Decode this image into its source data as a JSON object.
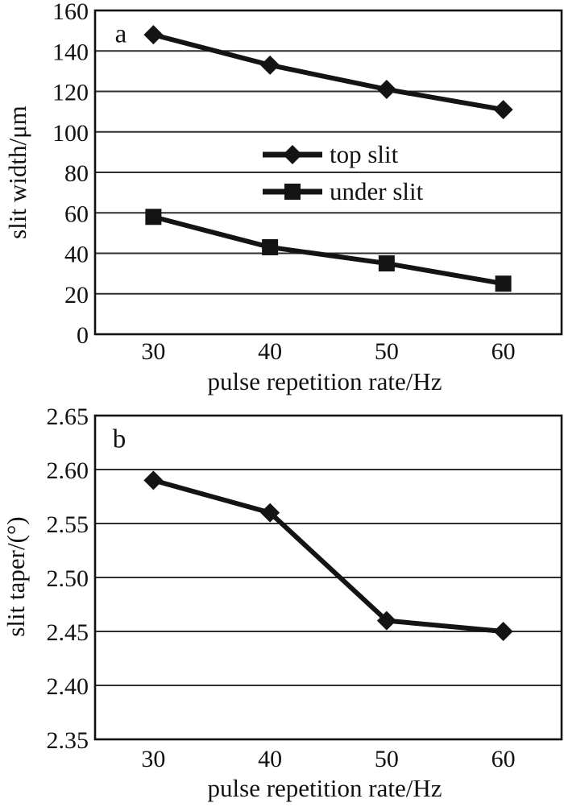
{
  "chart_data": [
    {
      "type": "line",
      "panel_label": "a",
      "xlabel": "pulse repetition rate/Hz",
      "ylabel": "slit width/μm",
      "x": [
        30,
        40,
        50,
        60
      ],
      "xlim": [
        25,
        65
      ],
      "ylim": [
        0,
        160
      ],
      "xtick_labels": [
        "30",
        "40",
        "50",
        "60"
      ],
      "ytick_labels": [
        "0",
        "20",
        "40",
        "60",
        "80",
        "100",
        "120",
        "140",
        "160"
      ],
      "grid": true,
      "show_legend": true,
      "legend_position": "inside-middle-left",
      "line_color": "#141414",
      "series": [
        {
          "name": "top slit",
          "marker": "diamond",
          "values": [
            148,
            133,
            121,
            111
          ]
        },
        {
          "name": "under slit",
          "marker": "square",
          "values": [
            58,
            43,
            35,
            25
          ]
        }
      ]
    },
    {
      "type": "line",
      "panel_label": "b",
      "xlabel": "pulse repetition rate/Hz",
      "ylabel": "slit taper/(°)",
      "x": [
        30,
        40,
        50,
        60
      ],
      "xlim": [
        25,
        65
      ],
      "ylim": [
        2.35,
        2.65
      ],
      "xtick_labels": [
        "30",
        "40",
        "50",
        "60"
      ],
      "ytick_labels": [
        "2.35",
        "2.40",
        "2.45",
        "2.50",
        "2.55",
        "2.60",
        "2.65"
      ],
      "grid": true,
      "show_legend": false,
      "line_color": "#141414",
      "series": [
        {
          "name": "",
          "marker": "diamond",
          "values": [
            2.59,
            2.56,
            2.46,
            2.45
          ]
        }
      ]
    }
  ]
}
